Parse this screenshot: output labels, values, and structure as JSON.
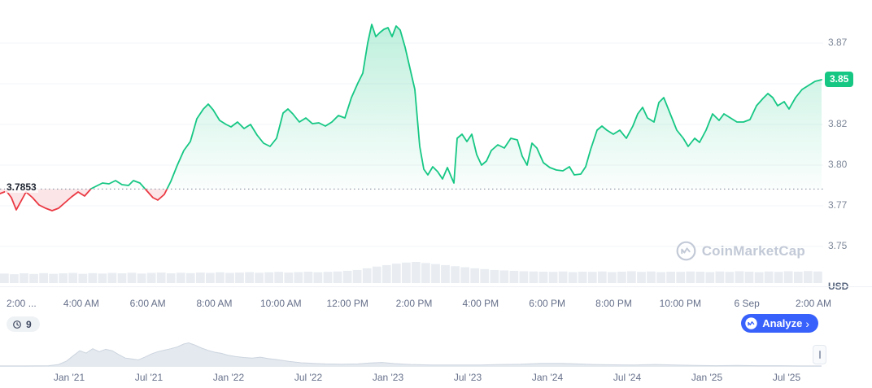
{
  "watermark": {
    "label": "CoinMarketCap"
  },
  "controls": {
    "refresh_countdown": "9",
    "analyze_label": "Analyze",
    "analyze_chevron": "›",
    "analyze_color": "#3861fb"
  },
  "chart_data": {
    "type": "line",
    "title": "",
    "y_axis": {
      "unit": "USD",
      "labels": [
        "3.87",
        "3.85",
        "3.82",
        "3.80",
        "3.77",
        "3.75"
      ],
      "values": [
        3.875,
        3.85,
        3.825,
        3.8,
        3.775,
        3.75
      ]
    },
    "x_axis": {
      "labels": [
        "2:00 ...",
        "4:00 AM",
        "6:00 AM",
        "8:00 AM",
        "10:00 AM",
        "12:00 PM",
        "2:00 PM",
        "4:00 PM",
        "6:00 PM",
        "8:00 PM",
        "10:00 PM",
        "6 Sep",
        "2:00 AM"
      ]
    },
    "baseline": {
      "label": "3.7853",
      "value": 3.7853
    },
    "current": {
      "label": "3.85",
      "value": 3.8525
    },
    "ylim": [
      3.74,
      3.9
    ],
    "colors": {
      "up": "#16c784",
      "down": "#ea3943",
      "baseline": "#7c8698",
      "grid": "#f2f4f8",
      "volume": "#e9edf2",
      "navigator_fill": "#e4e9ef",
      "navigator_stroke": "#cdd5df"
    },
    "points": [
      [
        0,
        3.7825
      ],
      [
        8,
        3.784
      ],
      [
        14,
        3.78
      ],
      [
        20,
        3.7725
      ],
      [
        26,
        3.778
      ],
      [
        32,
        3.7835
      ],
      [
        40,
        3.78
      ],
      [
        48,
        3.7755
      ],
      [
        56,
        3.7735
      ],
      [
        64,
        3.772
      ],
      [
        72,
        3.7735
      ],
      [
        80,
        3.777
      ],
      [
        88,
        3.7805
      ],
      [
        96,
        3.7835
      ],
      [
        104,
        3.781
      ],
      [
        112,
        3.7855
      ],
      [
        118,
        3.787
      ],
      [
        126,
        3.789
      ],
      [
        134,
        3.7885
      ],
      [
        142,
        3.7905
      ],
      [
        150,
        3.788
      ],
      [
        158,
        3.7875
      ],
      [
        164,
        3.7905
      ],
      [
        172,
        3.789
      ],
      [
        180,
        3.7845
      ],
      [
        188,
        3.78
      ],
      [
        194,
        3.7785
      ],
      [
        202,
        3.782
      ],
      [
        210,
        3.79
      ],
      [
        218,
        3.8
      ],
      [
        226,
        3.809
      ],
      [
        234,
        3.8145
      ],
      [
        242,
        3.8285
      ],
      [
        250,
        3.8345
      ],
      [
        256,
        3.8375
      ],
      [
        262,
        3.834
      ],
      [
        270,
        3.8275
      ],
      [
        278,
        3.825
      ],
      [
        284,
        3.8235
      ],
      [
        292,
        3.8265
      ],
      [
        300,
        3.8225
      ],
      [
        308,
        3.825
      ],
      [
        316,
        3.8185
      ],
      [
        324,
        3.8135
      ],
      [
        332,
        3.8115
      ],
      [
        340,
        3.8165
      ],
      [
        348,
        3.832
      ],
      [
        354,
        3.8345
      ],
      [
        360,
        3.8315
      ],
      [
        368,
        3.8265
      ],
      [
        376,
        3.829
      ],
      [
        384,
        3.8255
      ],
      [
        392,
        3.826
      ],
      [
        400,
        3.824
      ],
      [
        408,
        3.8265
      ],
      [
        416,
        3.8305
      ],
      [
        424,
        3.829
      ],
      [
        432,
        3.8415
      ],
      [
        440,
        3.8505
      ],
      [
        446,
        3.8565
      ],
      [
        452,
        3.875
      ],
      [
        457,
        3.8865
      ],
      [
        462,
        3.879
      ],
      [
        467,
        3.8815
      ],
      [
        472,
        3.8835
      ],
      [
        477,
        3.8845
      ],
      [
        482,
        3.879
      ],
      [
        487,
        3.8855
      ],
      [
        492,
        3.883
      ],
      [
        498,
        3.8725
      ],
      [
        504,
        3.8595
      ],
      [
        510,
        3.8465
      ],
      [
        516,
        3.8115
      ],
      [
        521,
        3.7975
      ],
      [
        526,
        3.794
      ],
      [
        532,
        3.799
      ],
      [
        538,
        3.796
      ],
      [
        544,
        3.7915
      ],
      [
        550,
        3.7985
      ],
      [
        555,
        3.7925
      ],
      [
        558,
        3.789
      ],
      [
        562,
        3.8165
      ],
      [
        568,
        3.819
      ],
      [
        574,
        3.8145
      ],
      [
        580,
        3.819
      ],
      [
        586,
        3.8065
      ],
      [
        592,
        3.8
      ],
      [
        598,
        3.8025
      ],
      [
        604,
        3.809
      ],
      [
        612,
        3.8125
      ],
      [
        620,
        3.8105
      ],
      [
        628,
        3.8165
      ],
      [
        636,
        3.8155
      ],
      [
        642,
        3.8055
      ],
      [
        648,
        3.8
      ],
      [
        654,
        3.8135
      ],
      [
        660,
        3.8105
      ],
      [
        668,
        3.8015
      ],
      [
        676,
        3.7985
      ],
      [
        684,
        3.797
      ],
      [
        692,
        3.7965
      ],
      [
        700,
        3.799
      ],
      [
        706,
        3.794
      ],
      [
        714,
        3.7945
      ],
      [
        720,
        3.799
      ],
      [
        726,
        3.8095
      ],
      [
        734,
        3.8215
      ],
      [
        740,
        3.824
      ],
      [
        746,
        3.8215
      ],
      [
        754,
        3.819
      ],
      [
        762,
        3.8215
      ],
      [
        770,
        3.8165
      ],
      [
        778,
        3.824
      ],
      [
        784,
        3.8315
      ],
      [
        790,
        3.8355
      ],
      [
        796,
        3.829
      ],
      [
        804,
        3.8265
      ],
      [
        810,
        3.8385
      ],
      [
        816,
        3.8415
      ],
      [
        824,
        3.8315
      ],
      [
        832,
        3.8215
      ],
      [
        840,
        3.8165
      ],
      [
        846,
        3.8115
      ],
      [
        854,
        3.8165
      ],
      [
        860,
        3.814
      ],
      [
        868,
        3.8215
      ],
      [
        876,
        3.8315
      ],
      [
        884,
        3.8275
      ],
      [
        890,
        3.8315
      ],
      [
        898,
        3.829
      ],
      [
        906,
        3.8265
      ],
      [
        914,
        3.8265
      ],
      [
        922,
        3.828
      ],
      [
        930,
        3.8365
      ],
      [
        938,
        3.841
      ],
      [
        944,
        3.844
      ],
      [
        950,
        3.8415
      ],
      [
        956,
        3.8365
      ],
      [
        964,
        3.839
      ],
      [
        970,
        3.8345
      ],
      [
        978,
        3.8415
      ],
      [
        986,
        3.8465
      ],
      [
        994,
        3.849
      ],
      [
        1002,
        3.8515
      ],
      [
        1010,
        3.8525
      ]
    ],
    "volumes": [
      0.45,
      0.42,
      0.46,
      0.43,
      0.47,
      0.44,
      0.46,
      0.48,
      0.44,
      0.47,
      0.45,
      0.48,
      0.46,
      0.49,
      0.45,
      0.48,
      0.5,
      0.46,
      0.49,
      0.47,
      0.5,
      0.48,
      0.51,
      0.48,
      0.5,
      0.52,
      0.49,
      0.51,
      0.53,
      0.5,
      0.52,
      0.54,
      0.51,
      0.53,
      0.55,
      0.58,
      0.62,
      0.7,
      0.78,
      0.85,
      0.92,
      0.97,
      1.0,
      0.95,
      0.9,
      0.85,
      0.8,
      0.75,
      0.7,
      0.66,
      0.62,
      0.6,
      0.58,
      0.56,
      0.55,
      0.54,
      0.53,
      0.55,
      0.52,
      0.54,
      0.53,
      0.55,
      0.52,
      0.54,
      0.56,
      0.53,
      0.55,
      0.52,
      0.54,
      0.53,
      0.55,
      0.54,
      0.52,
      0.55,
      0.53,
      0.56,
      0.54,
      0.52,
      0.55,
      0.53,
      0.56,
      0.54,
      0.57,
      0.55
    ],
    "navigator": {
      "date_labels": [
        "Jan '21",
        "Jul '21",
        "Jan '22",
        "Jul '22",
        "Jan '23",
        "Jul '23",
        "Jan '24",
        "Jul '24",
        "Jan '25",
        "Jul '25"
      ],
      "points": [
        [
          0,
          0.03
        ],
        [
          30,
          0.03
        ],
        [
          60,
          0.04
        ],
        [
          72,
          0.08
        ],
        [
          82,
          0.2
        ],
        [
          90,
          0.38
        ],
        [
          98,
          0.55
        ],
        [
          106,
          0.47
        ],
        [
          114,
          0.62
        ],
        [
          122,
          0.52
        ],
        [
          130,
          0.6
        ],
        [
          138,
          0.55
        ],
        [
          146,
          0.42
        ],
        [
          154,
          0.3
        ],
        [
          162,
          0.27
        ],
        [
          170,
          0.24
        ],
        [
          178,
          0.33
        ],
        [
          186,
          0.44
        ],
        [
          194,
          0.52
        ],
        [
          202,
          0.57
        ],
        [
          210,
          0.62
        ],
        [
          218,
          0.68
        ],
        [
          226,
          0.78
        ],
        [
          232,
          0.82
        ],
        [
          240,
          0.74
        ],
        [
          248,
          0.64
        ],
        [
          256,
          0.56
        ],
        [
          264,
          0.5
        ],
        [
          272,
          0.46
        ],
        [
          280,
          0.4
        ],
        [
          290,
          0.35
        ],
        [
          300,
          0.32
        ],
        [
          310,
          0.3
        ],
        [
          320,
          0.33
        ],
        [
          330,
          0.28
        ],
        [
          340,
          0.25
        ],
        [
          355,
          0.19
        ],
        [
          370,
          0.14
        ],
        [
          385,
          0.12
        ],
        [
          400,
          0.1
        ],
        [
          420,
          0.09
        ],
        [
          440,
          0.1
        ],
        [
          455,
          0.13
        ],
        [
          470,
          0.15
        ],
        [
          485,
          0.11
        ],
        [
          505,
          0.08
        ],
        [
          530,
          0.06
        ],
        [
          560,
          0.06
        ],
        [
          590,
          0.06
        ],
        [
          615,
          0.08
        ],
        [
          640,
          0.09
        ],
        [
          665,
          0.12
        ],
        [
          690,
          0.12
        ],
        [
          710,
          0.1
        ],
        [
          730,
          0.08
        ],
        [
          755,
          0.07
        ],
        [
          780,
          0.06
        ],
        [
          805,
          0.08
        ],
        [
          830,
          0.06
        ],
        [
          855,
          0.05
        ],
        [
          880,
          0.04
        ],
        [
          905,
          0.05
        ],
        [
          930,
          0.04
        ],
        [
          960,
          0.04
        ],
        [
          985,
          0.03
        ],
        [
          1010,
          0.03
        ]
      ]
    }
  }
}
